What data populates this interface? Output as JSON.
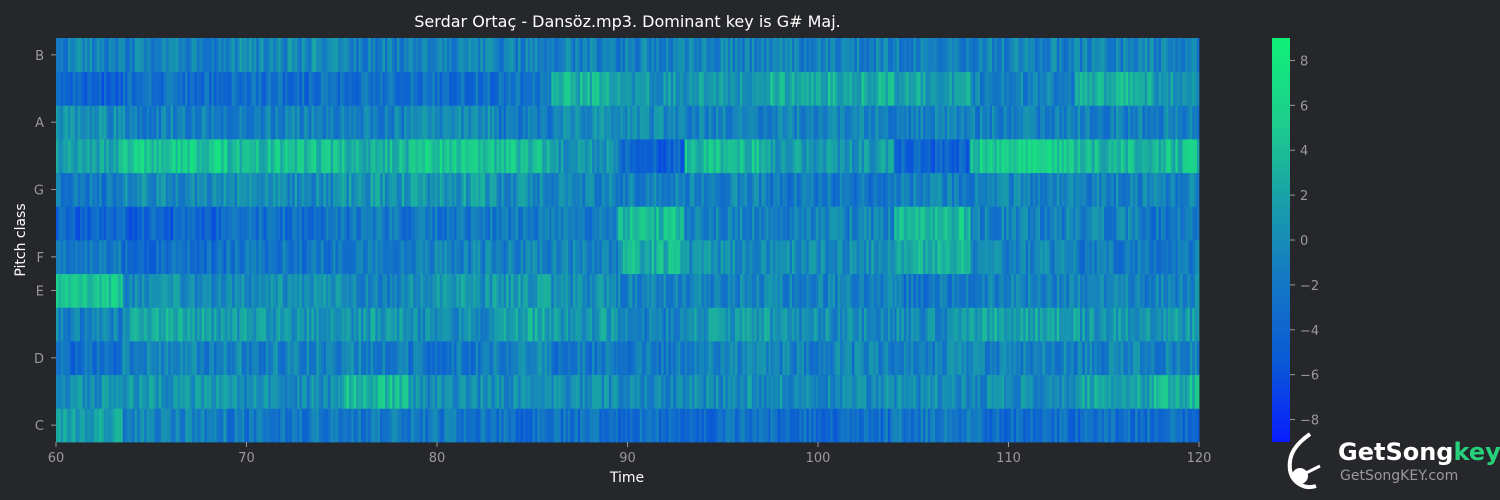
{
  "chart_data": {
    "type": "heatmap",
    "title": "Serdar Ortaç - Dansöz.mp3. Dominant key is G# Maj.",
    "xlabel": "Time",
    "ylabel": "Pitch class",
    "xlim": [
      60,
      120
    ],
    "x_ticks": [
      60,
      70,
      80,
      90,
      100,
      110,
      120
    ],
    "pitch_rows": [
      "C",
      "C#",
      "D",
      "D#",
      "E",
      "F",
      "F#",
      "G",
      "G#",
      "A",
      "A#",
      "B"
    ],
    "y_tick_labels": [
      "C",
      "D",
      "E",
      "F",
      "G",
      "A",
      "B"
    ],
    "colorbar": {
      "range": [
        -9,
        9
      ],
      "ticks": [
        -8,
        -6,
        -4,
        -2,
        0,
        2,
        4,
        6,
        8
      ],
      "tick_labels": [
        "−8",
        "−6",
        "−4",
        "−2",
        "0",
        "2",
        "4",
        "6",
        "8"
      ],
      "colormap": [
        "#0a1cff",
        "#0a5ad6",
        "#1478c4",
        "#19a0a8",
        "#1ecf8c",
        "#10f078"
      ]
    },
    "segments": [
      {
        "start": 60,
        "end": 63.5,
        "values": [
          1.5,
          0.5,
          -3,
          -1,
          5,
          -2,
          -4,
          -2,
          2,
          0,
          -4,
          -1
        ]
      },
      {
        "start": 63.5,
        "end": 69,
        "values": [
          -1,
          1,
          -1,
          2,
          0,
          -3,
          -4,
          0,
          5,
          -1,
          -3,
          -1
        ]
      },
      {
        "start": 69,
        "end": 75,
        "values": [
          -2,
          0,
          -1,
          1,
          0,
          -2,
          -3,
          0,
          4,
          -1,
          -3,
          0
        ]
      },
      {
        "start": 75,
        "end": 78.5,
        "values": [
          -2,
          4,
          -1,
          1,
          -1,
          -2,
          -2,
          1,
          3,
          -1,
          -3,
          -1
        ]
      },
      {
        "start": 78.5,
        "end": 83,
        "values": [
          -2,
          0,
          -2,
          0,
          1,
          -1,
          -2,
          1,
          5,
          0,
          -3,
          -1
        ]
      },
      {
        "start": 83,
        "end": 86,
        "values": [
          -3,
          0,
          -1,
          2,
          1,
          -1,
          -2,
          0,
          4,
          -2,
          -3,
          -1
        ]
      },
      {
        "start": 86,
        "end": 89.5,
        "values": [
          -3,
          0,
          -2,
          1,
          0,
          -1,
          -2,
          -1,
          1,
          0,
          3,
          -1
        ]
      },
      {
        "start": 89.5,
        "end": 93,
        "values": [
          -3,
          -1,
          -2,
          -1,
          -1,
          3,
          4,
          -1,
          -4,
          0,
          1,
          -1
        ]
      },
      {
        "start": 93,
        "end": 97.5,
        "values": [
          -3,
          0,
          -1,
          1,
          -1,
          0,
          -1,
          -1,
          4,
          -1,
          1,
          -1
        ]
      },
      {
        "start": 97.5,
        "end": 104,
        "values": [
          -3,
          0,
          -1,
          0,
          -1,
          0,
          -1,
          -2,
          1,
          -1,
          3,
          -1
        ]
      },
      {
        "start": 104,
        "end": 108,
        "values": [
          -2,
          0,
          -1,
          0,
          -2,
          3,
          4,
          -1,
          -4,
          -1,
          2,
          -1
        ]
      },
      {
        "start": 108,
        "end": 113.5,
        "values": [
          -3,
          0,
          -1,
          2,
          -1,
          -1,
          -1,
          -1,
          5,
          -1,
          -1,
          -1
        ]
      },
      {
        "start": 113.5,
        "end": 117.5,
        "values": [
          -3,
          2,
          -1,
          1,
          -1,
          -2,
          -1,
          -1,
          4,
          -1,
          3,
          -1
        ]
      },
      {
        "start": 117.5,
        "end": 120,
        "values": [
          -3,
          3,
          -1,
          1,
          -1,
          -2,
          -2,
          -1,
          4,
          -1,
          1,
          -1
        ]
      }
    ]
  },
  "logo": {
    "brand_main": "GetSong",
    "brand_accent": "key",
    "url": "GetSongKEY.com"
  }
}
